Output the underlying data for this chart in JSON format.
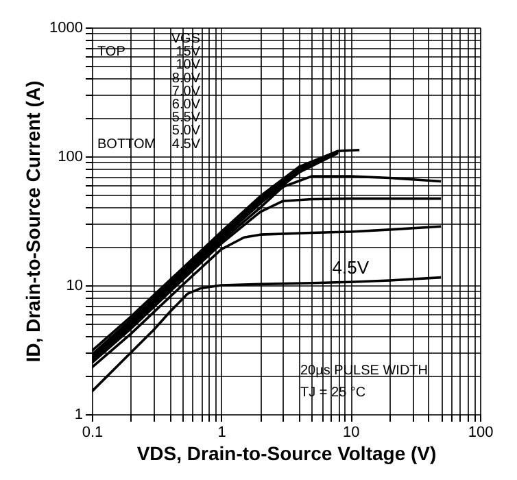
{
  "chart_data": {
    "type": "line",
    "xlabel": "VDS, Drain-to-Source Voltage (V)",
    "ylabel": "ID, Drain-to-Source Current (A)",
    "log": "xy",
    "grid": true,
    "line_style": "solid",
    "xlim": [
      0.1,
      100
    ],
    "ylim": [
      1,
      1000
    ],
    "xticks": [
      0.1,
      {
        "value": 0.2,
        "label": null
      },
      {
        "value": 0.3,
        "label": null
      },
      {
        "value": 0.4,
        "label": null
      },
      {
        "value": 0.5,
        "label": null
      },
      {
        "value": 0.6,
        "label": null
      },
      {
        "value": 0.7,
        "label": null
      },
      {
        "value": 0.8,
        "label": null
      },
      {
        "value": 0.9,
        "label": null
      },
      1,
      {
        "value": 2,
        "label": null
      },
      {
        "value": 3,
        "label": null
      },
      {
        "value": 4,
        "label": null
      },
      {
        "value": 5,
        "label": null
      },
      {
        "value": 6,
        "label": null
      },
      {
        "value": 7,
        "label": null
      },
      {
        "value": 8,
        "label": null
      },
      {
        "value": 9,
        "label": null
      },
      10,
      {
        "value": 20,
        "label": null
      },
      {
        "value": 30,
        "label": null
      },
      {
        "value": 40,
        "label": null
      },
      {
        "value": 50,
        "label": null
      },
      {
        "value": 60,
        "label": null
      },
      {
        "value": 70,
        "label": null
      },
      {
        "value": 80,
        "label": null
      },
      {
        "value": 90,
        "label": null
      },
      100
    ],
    "yticks": [
      1,
      {
        "value": 2,
        "label": null
      },
      {
        "value": 3,
        "label": null
      },
      {
        "value": 4,
        "label": null
      },
      {
        "value": 5,
        "label": null
      },
      {
        "value": 6,
        "label": null
      },
      {
        "value": 7,
        "label": null
      },
      {
        "value": 8,
        "label": null
      },
      {
        "value": 9,
        "label": null
      },
      10,
      {
        "value": 20,
        "label": null
      },
      {
        "value": 30,
        "label": null
      },
      {
        "value": 40,
        "label": null
      },
      {
        "value": 50,
        "label": null
      },
      {
        "value": 60,
        "label": null
      },
      {
        "value": 70,
        "label": null
      },
      {
        "value": 80,
        "label": null
      },
      {
        "value": 90,
        "label": null
      },
      100,
      {
        "value": 200,
        "label": null
      },
      {
        "value": 300,
        "label": null
      },
      {
        "value": 400,
        "label": null
      },
      {
        "value": 500,
        "label": null
      },
      {
        "value": 600,
        "label": null
      },
      {
        "value": 700,
        "label": null
      },
      {
        "value": 800,
        "label": null
      },
      {
        "value": 900,
        "label": null
      },
      1000
    ],
    "series": [
      {
        "color": "#000000",
        "x": [
          0.1,
          0.2,
          0.5,
          1,
          2,
          4,
          8,
          11.7
        ],
        "values": [
          3.1,
          5.7,
          13.5,
          26,
          49,
          83,
          110,
          112
        ]
      },
      {
        "color": "#000000",
        "x": [
          0.1,
          0.2,
          0.5,
          1,
          2,
          4,
          8
        ],
        "values": [
          2.9,
          5.4,
          13,
          25,
          47,
          80,
          110
        ]
      },
      {
        "color": "#000000",
        "x": [
          0.1,
          0.2,
          0.5,
          1,
          2,
          4,
          8
        ],
        "values": [
          2.8,
          5.2,
          12.5,
          24,
          45,
          78,
          108
        ]
      },
      {
        "color": "#000000",
        "x": [
          0.1,
          0.2,
          0.5,
          1,
          2,
          4,
          8
        ],
        "values": [
          2.7,
          5,
          12,
          23,
          43,
          75,
          106
        ]
      },
      {
        "color": "#000000",
        "x": [
          0.1,
          0.2,
          0.5,
          1,
          2,
          3,
          5,
          10,
          20,
          50
        ],
        "values": [
          2.6,
          4.8,
          11.5,
          22,
          40,
          58,
          70,
          70,
          68,
          64
        ]
      },
      {
        "color": "#000000",
        "x": [
          0.1,
          0.2,
          0.5,
          1,
          2,
          3,
          5,
          10,
          20,
          50
        ],
        "values": [
          2.5,
          4.6,
          11,
          21,
          37,
          45,
          46.5,
          47,
          47,
          47
        ]
      },
      {
        "color": "#000000",
        "x": [
          0.1,
          0.2,
          0.5,
          1,
          1.5,
          2,
          5,
          10,
          20,
          50
        ],
        "values": [
          2.3,
          4.2,
          10,
          19,
          23.5,
          24.7,
          25.5,
          26,
          27,
          28.6
        ]
      },
      {
        "name": "4.5V",
        "color": "#000000",
        "x": [
          0.1,
          0.2,
          0.3,
          0.4,
          0.55,
          0.7,
          1,
          2,
          5,
          10,
          20,
          50
        ],
        "values": [
          1.5,
          3.0,
          4.5,
          6.2,
          8.6,
          9.5,
          10,
          10.2,
          10.4,
          10.6,
          10.9,
          11.5
        ]
      }
    ],
    "annotations": [
      "VGS",
      "TOP",
      "15V",
      "10V",
      "8.0V",
      "7.0V",
      "6.0V",
      "5.5V",
      "5.0V",
      "BOTTOM",
      "4.5V",
      "20µs PULSE WIDTH",
      "TJ = 25 °C"
    ]
  }
}
